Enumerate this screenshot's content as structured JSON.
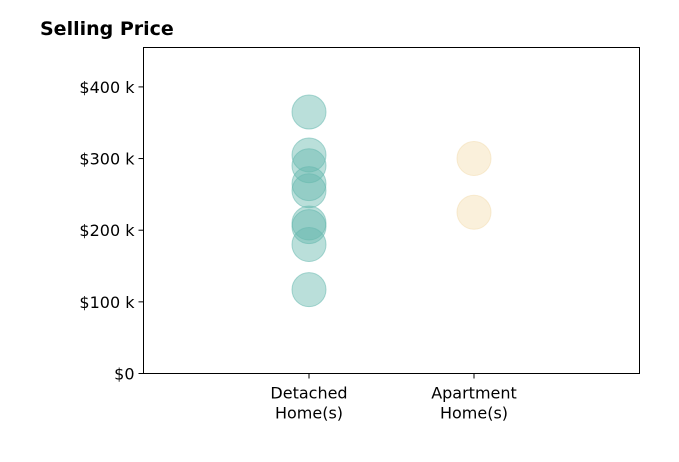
{
  "chart_data": {
    "type": "scatter",
    "title": "Selling Price",
    "xlabel": "",
    "ylabel": "",
    "categories": [
      "Detached\nHome(s)",
      "Apartment\nHome(s)"
    ],
    "ylim": [
      0,
      455000
    ],
    "yticks": [
      {
        "value": 0,
        "label": "$0"
      },
      {
        "value": 100000,
        "label": "$100 k"
      },
      {
        "value": 200000,
        "label": "$200 k"
      },
      {
        "value": 300000,
        "label": "$300 k"
      },
      {
        "value": 400000,
        "label": "$400 k"
      }
    ],
    "grid": false,
    "legend": "none",
    "series": [
      {
        "category_index": 0,
        "color": "#66b8ae",
        "values": [
          365000,
          305000,
          290000,
          265000,
          255000,
          210000,
          205000,
          180000,
          117000
        ]
      },
      {
        "category_index": 1,
        "color": "#f3ddb0",
        "values": [
          300000,
          225000
        ]
      }
    ]
  }
}
